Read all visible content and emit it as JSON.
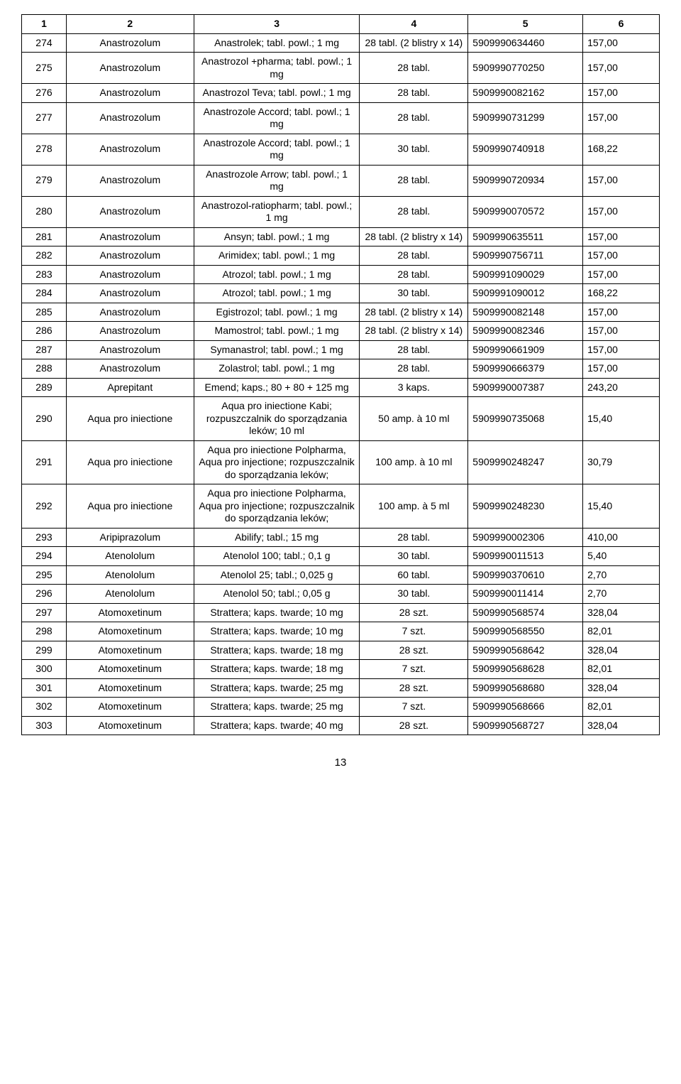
{
  "table": {
    "columns": [
      "1",
      "2",
      "3",
      "4",
      "5",
      "6"
    ],
    "col_align": [
      "center",
      "center",
      "center",
      "center",
      "left",
      "left"
    ],
    "header_fontsize": 14,
    "cell_fontsize": 14,
    "border_color": "#000000",
    "background_color": "#ffffff",
    "rows": [
      [
        "274",
        "Anastrozolum",
        "Anastrolek; tabl. powl.; 1 mg",
        "28 tabl. (2 blistry x 14)",
        "5909990634460",
        "157,00"
      ],
      [
        "275",
        "Anastrozolum",
        "Anastrozol +pharma; tabl. powl.; 1 mg",
        "28 tabl.",
        "5909990770250",
        "157,00"
      ],
      [
        "276",
        "Anastrozolum",
        "Anastrozol Teva; tabl. powl.; 1 mg",
        "28 tabl.",
        "5909990082162",
        "157,00"
      ],
      [
        "277",
        "Anastrozolum",
        "Anastrozole Accord; tabl. powl.; 1 mg",
        "28 tabl.",
        "5909990731299",
        "157,00"
      ],
      [
        "278",
        "Anastrozolum",
        "Anastrozole Accord; tabl. powl.; 1 mg",
        "30 tabl.",
        "5909990740918",
        "168,22"
      ],
      [
        "279",
        "Anastrozolum",
        "Anastrozole Arrow; tabl. powl.; 1 mg",
        "28 tabl.",
        "5909990720934",
        "157,00"
      ],
      [
        "280",
        "Anastrozolum",
        "Anastrozol-ratiopharm; tabl. powl.; 1 mg",
        "28 tabl.",
        "5909990070572",
        "157,00"
      ],
      [
        "281",
        "Anastrozolum",
        "Ansyn; tabl. powl.; 1 mg",
        "28 tabl. (2 blistry x 14)",
        "5909990635511",
        "157,00"
      ],
      [
        "282",
        "Anastrozolum",
        "Arimidex; tabl. powl.; 1 mg",
        "28 tabl.",
        "5909990756711",
        "157,00"
      ],
      [
        "283",
        "Anastrozolum",
        "Atrozol; tabl. powl.; 1 mg",
        "28 tabl.",
        "5909991090029",
        "157,00"
      ],
      [
        "284",
        "Anastrozolum",
        "Atrozol; tabl. powl.; 1 mg",
        "30 tabl.",
        "5909991090012",
        "168,22"
      ],
      [
        "285",
        "Anastrozolum",
        "Egistrozol; tabl. powl.; 1 mg",
        "28 tabl. (2 blistry x 14)",
        "5909990082148",
        "157,00"
      ],
      [
        "286",
        "Anastrozolum",
        "Mamostrol; tabl. powl.; 1 mg",
        "28 tabl. (2 blistry x 14)",
        "5909990082346",
        "157,00"
      ],
      [
        "287",
        "Anastrozolum",
        "Symanastrol; tabl. powl.; 1 mg",
        "28 tabl.",
        "5909990661909",
        "157,00"
      ],
      [
        "288",
        "Anastrozolum",
        "Zolastrol; tabl. powl.; 1 mg",
        "28 tabl.",
        "5909990666379",
        "157,00"
      ],
      [
        "289",
        "Aprepitant",
        "Emend; kaps.; 80 + 80 + 125 mg",
        "3 kaps.",
        "5909990007387",
        "243,20"
      ],
      [
        "290",
        "Aqua pro iniectione",
        "Aqua pro iniectione Kabi; rozpuszczalnik do sporządzania leków; 10 ml",
        "50 amp. à 10 ml",
        "5909990735068",
        "15,40"
      ],
      [
        "291",
        "Aqua pro iniectione",
        "Aqua pro iniectione Polpharma, Aqua pro injectione; rozpuszczalnik do sporządzania leków;",
        "100 amp. à 10 ml",
        "5909990248247",
        "30,79"
      ],
      [
        "292",
        "Aqua pro iniectione",
        "Aqua pro iniectione Polpharma, Aqua pro injectione; rozpuszczalnik do sporządzania leków;",
        "100 amp. à 5 ml",
        "5909990248230",
        "15,40"
      ],
      [
        "293",
        "Aripiprazolum",
        "Abilify; tabl.; 15 mg",
        "28 tabl.",
        "5909990002306",
        "410,00"
      ],
      [
        "294",
        "Atenololum",
        "Atenolol 100; tabl.; 0,1 g",
        "30 tabl.",
        "5909990011513",
        "5,40"
      ],
      [
        "295",
        "Atenololum",
        "Atenolol 25; tabl.; 0,025 g",
        "60 tabl.",
        "5909990370610",
        "2,70"
      ],
      [
        "296",
        "Atenololum",
        "Atenolol 50; tabl.; 0,05 g",
        "30 tabl.",
        "5909990011414",
        "2,70"
      ],
      [
        "297",
        "Atomoxetinum",
        "Strattera; kaps. twarde; 10 mg",
        "28 szt.",
        "5909990568574",
        "328,04"
      ],
      [
        "298",
        "Atomoxetinum",
        "Strattera; kaps. twarde; 10 mg",
        "7 szt.",
        "5909990568550",
        "82,01"
      ],
      [
        "299",
        "Atomoxetinum",
        "Strattera; kaps. twarde; 18 mg",
        "28 szt.",
        "5909990568642",
        "328,04"
      ],
      [
        "300",
        "Atomoxetinum",
        "Strattera; kaps. twarde; 18 mg",
        "7 szt.",
        "5909990568628",
        "82,01"
      ],
      [
        "301",
        "Atomoxetinum",
        "Strattera; kaps. twarde; 25 mg",
        "28 szt.",
        "5909990568680",
        "328,04"
      ],
      [
        "302",
        "Atomoxetinum",
        "Strattera; kaps. twarde; 25 mg",
        "7 szt.",
        "5909990568666",
        "82,01"
      ],
      [
        "303",
        "Atomoxetinum",
        "Strattera; kaps. twarde; 40 mg",
        "28 szt.",
        "5909990568727",
        "328,04"
      ]
    ]
  },
  "page_number": "13"
}
